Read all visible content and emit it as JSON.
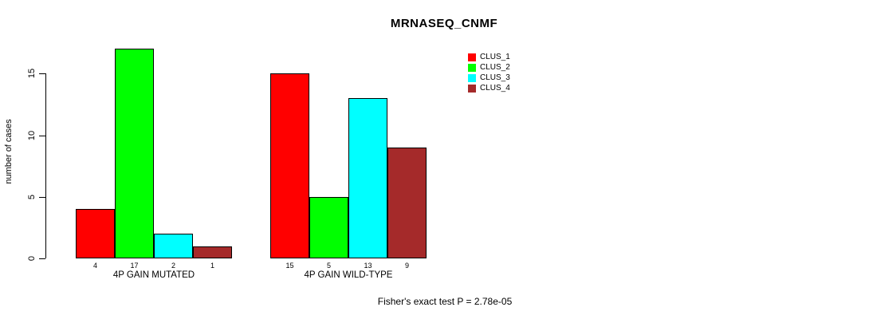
{
  "title": "MRNASEQ_CNMF",
  "caption": "Fisher's exact test P = 2.78e-05",
  "colors": {
    "background": "#FFFFFF",
    "axis": "#000000",
    "text": "#000000",
    "clus_1": "#FF0000",
    "clus_2": "#00FF00",
    "clus_3": "#00FFFF",
    "clus_4": "#A52A2A"
  },
  "chart_data": {
    "type": "bar",
    "title": "MRNASEQ_CNMF",
    "xlabel": "",
    "ylabel": "number of cases",
    "categories": [
      "4P GAIN MUTATED",
      "4P GAIN WILD-TYPE"
    ],
    "series": [
      {
        "name": "CLUS_1",
        "color": "#FF0000",
        "values": [
          4,
          15
        ]
      },
      {
        "name": "CLUS_2",
        "color": "#00FF00",
        "values": [
          17,
          5
        ]
      },
      {
        "name": "CLUS_3",
        "color": "#00FFFF",
        "values": [
          2,
          13
        ]
      },
      {
        "name": "CLUS_4",
        "color": "#A52A2A",
        "values": [
          1,
          9
        ]
      }
    ],
    "bar_value_labels": [
      [
        4,
        17,
        2,
        1
      ],
      [
        15,
        5,
        13,
        9
      ]
    ],
    "yticks": [
      0,
      5,
      10,
      15
    ],
    "ylim": [
      0,
      17
    ],
    "grid": false,
    "legend_position": "top-right",
    "annotation": "Fisher's exact test P = 2.78e-05"
  }
}
